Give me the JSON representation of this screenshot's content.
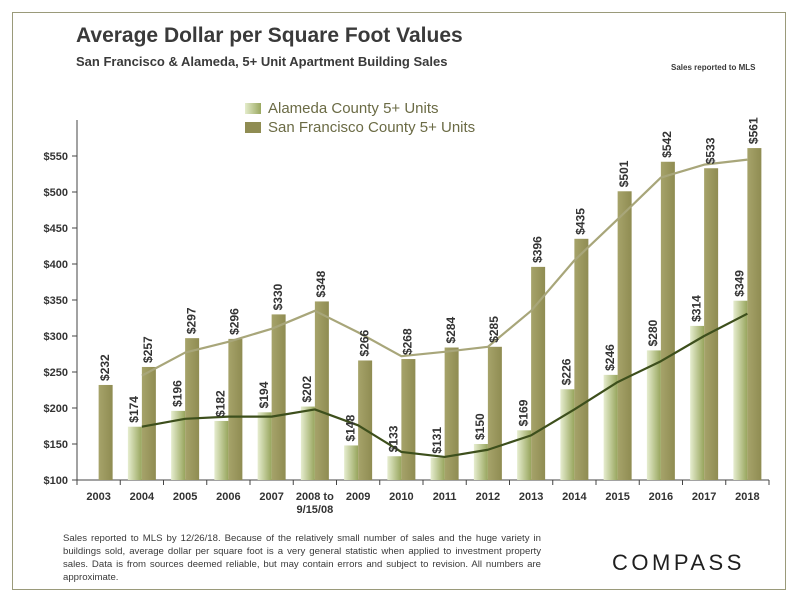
{
  "header": {
    "title": "Average Dollar per Square Foot Values",
    "subtitle": "San Francisco & Alameda, 5+ Unit Apartment Building Sales",
    "note": "Sales reported to MLS"
  },
  "footer": {
    "text": "Sales reported to MLS by 12/26/18. Because of the relatively small number of sales and the huge variety in buildings sold, average dollar per square foot is a very general statistic when applied to investment property sales. Data is from sources deemed reliable, but may contain errors and subject to revision. All numbers are approximate.",
    "brand": "COMPASS"
  },
  "colors": {
    "sf_bar": "#8f8c52",
    "sf_bar_light": "#a6a36a",
    "alameda_bar_light": "#e6edcf",
    "alameda_bar_dark": "#97a55c",
    "sf_trend": "#a8a67a",
    "alameda_trend": "#3d4f1c",
    "axis": "#444444",
    "label": "#333333"
  },
  "chart_data": {
    "type": "bar",
    "title": "Average Dollar per Square Foot Values",
    "categories": [
      "2003",
      "2004",
      "2005",
      "2006",
      "2007",
      "2008 to 9/15/08",
      "2009",
      "2010",
      "2011",
      "2012",
      "2013",
      "2014",
      "2015",
      "2016",
      "2017",
      "2018"
    ],
    "series": [
      {
        "name": "Alameda County 5+ Units",
        "values": [
          null,
          174,
          196,
          182,
          194,
          202,
          148,
          133,
          131,
          150,
          169,
          226,
          246,
          280,
          314,
          349
        ]
      },
      {
        "name": "San Francisco County 5+ Units",
        "values": [
          232,
          257,
          297,
          296,
          330,
          348,
          266,
          268,
          284,
          285,
          396,
          435,
          501,
          542,
          533,
          561
        ]
      }
    ],
    "trendlines": [
      {
        "name": "Alameda County trend",
        "values": [
          null,
          174,
          185,
          188,
          188,
          198,
          176,
          139,
          132,
          142,
          162,
          198,
          236,
          265,
          300,
          331
        ]
      },
      {
        "name": "San Francisco County trend",
        "values": [
          null,
          245,
          277,
          292,
          310,
          335,
          305,
          272,
          278,
          285,
          335,
          405,
          462,
          520,
          538,
          545
        ]
      }
    ],
    "y_ticks": [
      "$100",
      "$150",
      "$200",
      "$250",
      "$300",
      "$350",
      "$400",
      "$450",
      "$500",
      "$550"
    ],
    "ylim": [
      100,
      600
    ],
    "xlabel": "",
    "ylabel": "",
    "legend": {
      "position": "top-center",
      "items": [
        "Alameda County 5+ Units",
        "San Francisco County 5+ Units"
      ]
    },
    "value_prefix": "$"
  }
}
